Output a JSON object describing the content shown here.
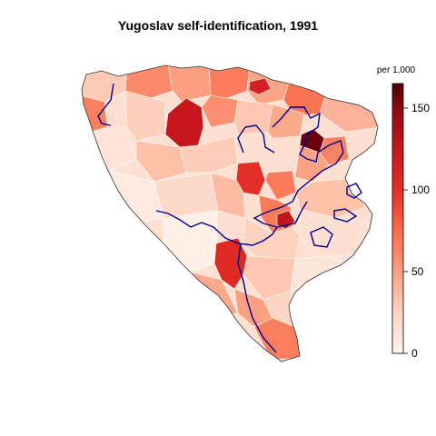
{
  "title": "Yugoslav self-identification, 1991",
  "legend": {
    "title": "per 1,000",
    "min": 0,
    "max": 165,
    "ticks": [
      {
        "value": 0,
        "label": "0"
      },
      {
        "value": 50,
        "label": "50"
      },
      {
        "value": 100,
        "label": "100"
      },
      {
        "value": 150,
        "label": "150"
      }
    ],
    "stops": [
      {
        "value": 0,
        "color": "#fff5f0"
      },
      {
        "value": 25,
        "color": "#fdd4c2"
      },
      {
        "value": 50,
        "color": "#fc9f81"
      },
      {
        "value": 75,
        "color": "#fb6b4b"
      },
      {
        "value": 100,
        "color": "#e32f27"
      },
      {
        "value": 125,
        "color": "#c5171c"
      },
      {
        "value": 150,
        "color": "#8b0a14"
      },
      {
        "value": 165,
        "color": "#4a0000"
      }
    ]
  },
  "colors": {
    "boundary": "#333333",
    "entity_line": "#00008b",
    "base_fill": "#fde0d2"
  }
}
